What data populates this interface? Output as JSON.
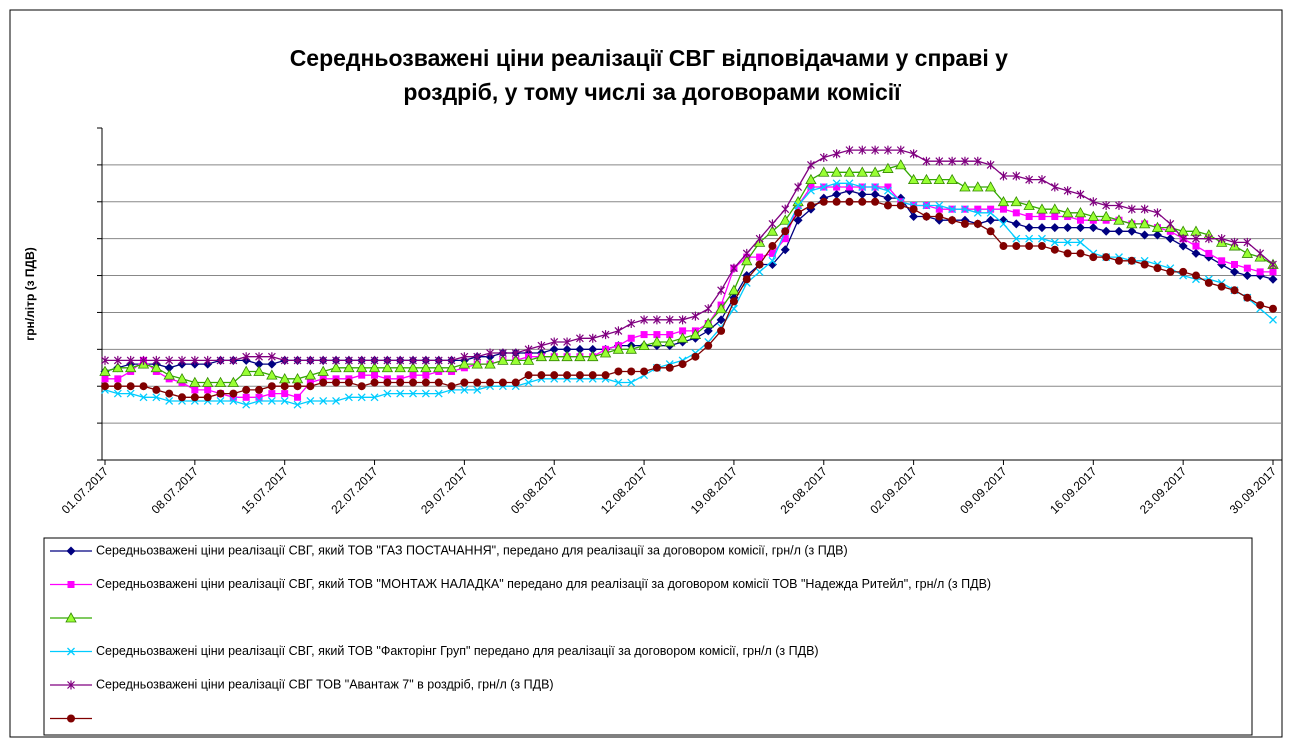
{
  "chart_data": {
    "type": "line",
    "title": [
      "Середньозважені ціни реалізації СВГ відповідачами у справі у",
      "роздріб, у тому числі за договорами комісії"
    ],
    "y_label": "грн/літр (з ПДВ)",
    "categories": [
      "01.07.2017",
      null,
      null,
      null,
      null,
      null,
      null,
      "08.07.2017",
      null,
      null,
      null,
      null,
      null,
      null,
      "15.07.2017",
      null,
      null,
      null,
      null,
      null,
      null,
      "22.07.2017",
      null,
      null,
      null,
      null,
      null,
      null,
      "29.07.2017",
      null,
      null,
      null,
      null,
      null,
      null,
      "05.08.2017",
      null,
      null,
      null,
      null,
      null,
      null,
      "12.08.2017",
      null,
      null,
      null,
      null,
      null,
      null,
      "19.08.2017",
      null,
      null,
      null,
      null,
      null,
      null,
      "26.08.2017",
      null,
      null,
      null,
      null,
      null,
      null,
      "02.09.2017",
      null,
      null,
      null,
      null,
      null,
      null,
      "09.09.2017",
      null,
      null,
      null,
      null,
      null,
      null,
      "16.09.2017",
      null,
      null,
      null,
      null,
      null,
      null,
      "23.09.2017",
      null,
      null,
      null,
      null,
      null,
      null,
      "30.09.2017"
    ],
    "ylim": [
      10,
      19
    ],
    "yticks": [
      10,
      11,
      12,
      13,
      14,
      15,
      16,
      17,
      18,
      19
    ],
    "grid": true,
    "series": [
      {
        "name": "Середньозважені ціни реалізації СВГ, який ТОВ \"ГАЗ ПОСТАЧАННЯ\", передано для реалізації за договором комісії,  грн/л (з ПДВ)",
        "color": "#000080",
        "marker": "diamond",
        "values": [
          12.4,
          12.5,
          12.6,
          12.6,
          12.6,
          12.5,
          12.6,
          12.6,
          12.6,
          12.7,
          12.7,
          12.7,
          12.6,
          12.6,
          12.7,
          12.7,
          12.7,
          12.7,
          12.7,
          12.7,
          12.7,
          12.7,
          12.7,
          12.7,
          12.7,
          12.7,
          12.7,
          12.7,
          12.7,
          12.8,
          12.8,
          12.9,
          12.9,
          12.9,
          12.9,
          13.0,
          13.0,
          13.0,
          13.0,
          13.0,
          13.1,
          13.1,
          13.1,
          13.1,
          13.1,
          13.2,
          13.3,
          13.5,
          13.8,
          14.4,
          15.0,
          15.3,
          15.3,
          15.7,
          16.5,
          16.8,
          17.1,
          17.2,
          17.3,
          17.2,
          17.2,
          17.1,
          17.1,
          16.6,
          16.6,
          16.5,
          16.5,
          16.5,
          16.4,
          16.5,
          16.5,
          16.4,
          16.3,
          16.3,
          16.3,
          16.3,
          16.3,
          16.3,
          16.2,
          16.2,
          16.2,
          16.1,
          16.1,
          16.0,
          15.8,
          15.6,
          15.5,
          15.3,
          15.1,
          15.0,
          15.0,
          14.9
        ]
      },
      {
        "name": "Середньозважені ціни реалізації СВГ, який ТОВ \"МОНТАЖ НАЛАДКА\" передано для реалізації за договором комісії ТОВ \"Надежда Ритейл\", грн/л (з ПДВ)",
        "color": "#ff00ff",
        "marker": "square",
        "values": [
          12.2,
          12.2,
          12.4,
          12.7,
          12.4,
          12.2,
          12.1,
          11.9,
          11.9,
          11.8,
          11.7,
          11.7,
          11.7,
          11.8,
          11.8,
          11.7,
          12.1,
          12.2,
          12.2,
          12.2,
          12.3,
          12.3,
          12.2,
          12.2,
          12.3,
          12.3,
          12.4,
          12.4,
          12.5,
          12.6,
          12.6,
          12.7,
          12.7,
          12.8,
          12.8,
          12.8,
          12.8,
          12.8,
          12.8,
          13.0,
          13.1,
          13.3,
          13.4,
          13.4,
          13.4,
          13.5,
          13.5,
          13.7,
          14.2,
          15.2,
          15.5,
          15.5,
          15.6,
          16.0,
          16.9,
          17.4,
          17.4,
          17.4,
          17.4,
          17.4,
          17.4,
          17.4,
          17.0,
          16.9,
          16.9,
          16.8,
          16.8,
          16.8,
          16.8,
          16.8,
          16.8,
          16.7,
          16.6,
          16.6,
          16.6,
          16.6,
          16.5,
          16.5,
          16.5,
          16.5,
          16.4,
          16.4,
          16.3,
          16.2,
          16.0,
          15.8,
          15.6,
          15.4,
          15.3,
          15.2,
          15.1,
          15.1
        ]
      },
      {
        "color": "#99ff33",
        "marker": "triangle",
        "values": [
          12.4,
          12.5,
          12.5,
          12.6,
          12.5,
          12.3,
          12.2,
          12.1,
          12.1,
          12.1,
          12.1,
          12.4,
          12.4,
          12.3,
          12.2,
          12.2,
          12.3,
          12.4,
          12.5,
          12.5,
          12.5,
          12.5,
          12.5,
          12.5,
          12.5,
          12.5,
          12.5,
          12.5,
          12.6,
          12.6,
          12.6,
          12.7,
          12.7,
          12.7,
          12.8,
          12.8,
          12.8,
          12.8,
          12.8,
          12.9,
          13.0,
          13.0,
          13.1,
          13.2,
          13.2,
          13.3,
          13.4,
          13.7,
          14.1,
          14.6,
          15.4,
          15.9,
          16.2,
          16.5,
          17.0,
          17.6,
          17.8,
          17.8,
          17.8,
          17.8,
          17.8,
          17.9,
          18.0,
          17.6,
          17.6,
          17.6,
          17.6,
          17.4,
          17.4,
          17.4,
          17.0,
          17.0,
          16.9,
          16.8,
          16.8,
          16.7,
          16.7,
          16.6,
          16.6,
          16.5,
          16.4,
          16.4,
          16.3,
          16.3,
          16.2,
          16.2,
          16.1,
          15.9,
          15.8,
          15.6,
          15.5,
          15.3
        ]
      },
      {
        "name": "Середньозважені ціни реалізації СВГ, який ТОВ \"Факторінг Груп\" передано для реалізації за договором комісії, грн/л (з ПДВ)",
        "color": "#00ccff",
        "marker": "x",
        "values": [
          11.9,
          11.8,
          11.8,
          11.7,
          11.7,
          11.6,
          11.6,
          11.6,
          11.6,
          11.6,
          11.6,
          11.5,
          11.6,
          11.6,
          11.6,
          11.5,
          11.6,
          11.6,
          11.6,
          11.7,
          11.7,
          11.7,
          11.8,
          11.8,
          11.8,
          11.8,
          11.8,
          11.9,
          11.9,
          11.9,
          12.0,
          12.0,
          12.0,
          12.1,
          12.2,
          12.2,
          12.2,
          12.2,
          12.2,
          12.2,
          12.1,
          12.1,
          12.3,
          12.5,
          12.6,
          12.7,
          12.9,
          13.2,
          13.6,
          14.1,
          14.8,
          15.1,
          15.4,
          16.2,
          16.9,
          17.3,
          17.4,
          17.5,
          17.5,
          17.4,
          17.4,
          17.3,
          17.0,
          16.9,
          16.9,
          16.9,
          16.8,
          16.8,
          16.7,
          16.7,
          16.4,
          16.0,
          16.0,
          16.0,
          15.9,
          15.9,
          15.9,
          15.6,
          15.5,
          15.5,
          15.4,
          15.4,
          15.3,
          15.2,
          15.0,
          14.9,
          14.9,
          14.8,
          14.6,
          14.4,
          14.1,
          13.8
        ]
      },
      {
        "name": "Середньозважені ціни реалізації СВГ ТОВ \"Авантаж 7\" в роздріб, грн/л (з ПДВ)",
        "color": "#800080",
        "marker": "star",
        "values": [
          12.7,
          12.7,
          12.7,
          12.7,
          12.7,
          12.7,
          12.7,
          12.7,
          12.7,
          12.7,
          12.7,
          12.8,
          12.8,
          12.8,
          12.7,
          12.7,
          12.7,
          12.7,
          12.7,
          12.7,
          12.7,
          12.7,
          12.7,
          12.7,
          12.7,
          12.7,
          12.7,
          12.7,
          12.8,
          12.8,
          12.9,
          12.9,
          12.9,
          13.0,
          13.1,
          13.2,
          13.2,
          13.3,
          13.3,
          13.4,
          13.5,
          13.7,
          13.8,
          13.8,
          13.8,
          13.8,
          13.9,
          14.1,
          14.6,
          15.2,
          15.6,
          16.0,
          16.4,
          16.8,
          17.4,
          18.0,
          18.2,
          18.3,
          18.4,
          18.4,
          18.4,
          18.4,
          18.4,
          18.3,
          18.1,
          18.1,
          18.1,
          18.1,
          18.1,
          18.0,
          17.7,
          17.7,
          17.6,
          17.6,
          17.4,
          17.3,
          17.2,
          17.0,
          16.9,
          16.9,
          16.8,
          16.8,
          16.7,
          16.4,
          16.0,
          16.0,
          16.0,
          16.0,
          15.9,
          15.9,
          15.6,
          15.3
        ]
      },
      {
        "color": "#800000",
        "marker": "circle",
        "values": [
          12.0,
          12.0,
          12.0,
          12.0,
          11.9,
          11.8,
          11.7,
          11.7,
          11.7,
          11.8,
          11.8,
          11.9,
          11.9,
          12.0,
          12.0,
          12.0,
          12.0,
          12.1,
          12.1,
          12.1,
          12.0,
          12.1,
          12.1,
          12.1,
          12.1,
          12.1,
          12.1,
          12.0,
          12.1,
          12.1,
          12.1,
          12.1,
          12.1,
          12.3,
          12.3,
          12.3,
          12.3,
          12.3,
          12.3,
          12.3,
          12.4,
          12.4,
          12.4,
          12.5,
          12.5,
          12.6,
          12.8,
          13.1,
          13.5,
          14.3,
          14.9,
          15.3,
          15.8,
          16.2,
          16.7,
          16.9,
          17.0,
          17.0,
          17.0,
          17.0,
          17.0,
          16.9,
          16.9,
          16.8,
          16.6,
          16.6,
          16.5,
          16.4,
          16.4,
          16.2,
          15.8,
          15.8,
          15.8,
          15.8,
          15.7,
          15.6,
          15.6,
          15.5,
          15.5,
          15.4,
          15.4,
          15.3,
          15.2,
          15.1,
          15.1,
          15.0,
          14.8,
          14.7,
          14.6,
          14.4,
          14.2,
          14.1
        ]
      }
    ]
  }
}
